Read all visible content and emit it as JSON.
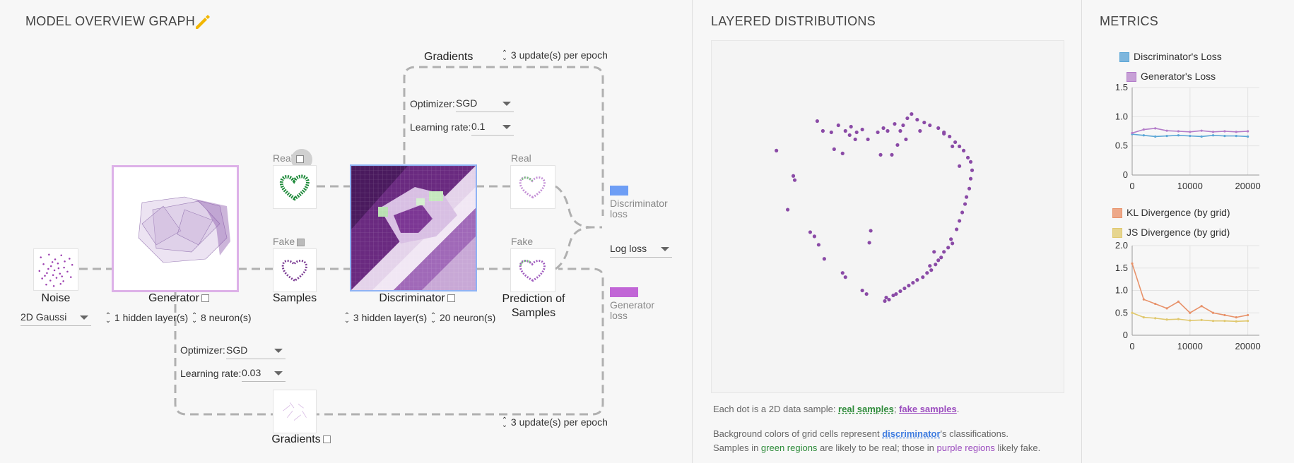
{
  "overview": {
    "title": "MODEL OVERVIEW GRAPH",
    "edit_icon": "pencil-icon",
    "noise": {
      "label": "Noise",
      "distribution": "2D Gaussi"
    },
    "generator": {
      "label": "Generator",
      "hidden_layers": "1 hidden layer(s)",
      "neurons": "8 neuron(s)"
    },
    "samples": {
      "label": "Samples",
      "real_label": "Real",
      "fake_label": "Fake"
    },
    "discriminator": {
      "label": "Discriminator",
      "hidden_layers": "3 hidden layer(s)",
      "neurons": "20 neuron(s)"
    },
    "prediction": {
      "label_line1": "Prediction of",
      "label_line2": "Samples",
      "real_label": "Real",
      "fake_label": "Fake"
    },
    "disc_gradients": {
      "title": "Gradients",
      "updates": "3 update(s) per epoch",
      "optimizer_label": "Optimizer:",
      "optimizer_value": "SGD",
      "lr_label": "Learning rate:",
      "lr_value": "0.1"
    },
    "gen_gradients": {
      "title": "Gradients",
      "updates": "3 update(s) per epoch",
      "optimizer_label": "Optimizer:",
      "optimizer_value": "SGD",
      "lr_label": "Learning rate:",
      "lr_value": "0.03"
    },
    "losses": {
      "disc_line1": "Discriminator",
      "disc_line2": "loss",
      "gen_line1": "Generator",
      "gen_line2": "loss",
      "loss_type": "Log loss",
      "disc_color": "#6e9ef5",
      "gen_color": "#c166d6"
    }
  },
  "distributions": {
    "title": "LAYERED DISTRIBUTIONS",
    "note1_prefix": "Each dot is a 2D data sample: ",
    "note1_real": "real samples",
    "note1_sep": "; ",
    "note1_fake": "fake samples",
    "note1_end": ".",
    "note2_prefix": "Background colors of grid cells represent ",
    "note2_disc": "discriminator",
    "note2_suffix": "'s classifications.",
    "note3_prefix": "Samples in ",
    "note3_green": "green regions",
    "note3_mid": " are likely to be real; those in ",
    "note3_purple": "purple regions",
    "note3_end": " likely fake."
  },
  "metrics": {
    "title": "METRICS",
    "chart_data": [
      {
        "type": "line",
        "series": [
          {
            "name": "Discriminator's Loss",
            "color": "#5aa6d6",
            "values": [
              0.7,
              0.68,
              0.66,
              0.67,
              0.68,
              0.67,
              0.66,
              0.68,
              0.67,
              0.67,
              0.66
            ]
          },
          {
            "name": "Generator's Loss",
            "color": "#b37cc9",
            "values": [
              0.72,
              0.78,
              0.8,
              0.76,
              0.75,
              0.74,
              0.76,
              0.74,
              0.75,
              0.74,
              0.75
            ]
          }
        ],
        "x": [
          0,
          2000,
          4000,
          6000,
          8000,
          10000,
          12000,
          14000,
          16000,
          18000,
          20000
        ],
        "xticks": [
          "0",
          "10000",
          "20000"
        ],
        "yticks": [
          "0",
          "0.5",
          "1.0",
          "1.5"
        ],
        "ylim": [
          0,
          1.5
        ],
        "xlim": [
          0,
          22000
        ]
      },
      {
        "type": "line",
        "series": [
          {
            "name": "KL Divergence (by grid)",
            "color": "#e8926a",
            "values": [
              1.6,
              0.8,
              0.7,
              0.6,
              0.75,
              0.5,
              0.65,
              0.5,
              0.45,
              0.4,
              0.45
            ]
          },
          {
            "name": "JS Divergence (by grid)",
            "color": "#e0c86e",
            "values": [
              0.5,
              0.4,
              0.38,
              0.35,
              0.36,
              0.33,
              0.34,
              0.32,
              0.32,
              0.31,
              0.32
            ]
          }
        ],
        "x": [
          0,
          2000,
          4000,
          6000,
          8000,
          10000,
          12000,
          14000,
          16000,
          18000,
          20000
        ],
        "xticks": [
          "0",
          "10000",
          "20000"
        ],
        "yticks": [
          "0",
          "0.5",
          "1.0",
          "1.5",
          "2.0"
        ],
        "ylim": [
          0,
          2.0
        ],
        "xlim": [
          0,
          22000
        ]
      }
    ]
  }
}
